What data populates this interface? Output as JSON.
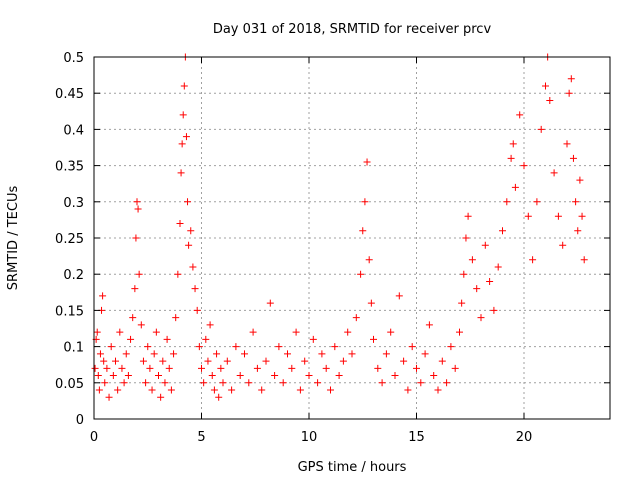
{
  "chart_data": {
    "type": "scatter",
    "title": "Day 031 of 2018, SRMTID for receiver prcv",
    "xlabel": "GPS time / hours",
    "ylabel": "SRMTID / TECUs",
    "xlim": [
      0,
      24
    ],
    "ylim": [
      0,
      0.5
    ],
    "x_ticks": [
      {
        "value": 0,
        "label": "0"
      },
      {
        "value": 5,
        "label": "5"
      },
      {
        "value": 10,
        "label": "10"
      },
      {
        "value": 15,
        "label": "15"
      },
      {
        "value": 20,
        "label": "20"
      }
    ],
    "y_ticks": [
      {
        "value": 0,
        "label": "0"
      },
      {
        "value": 0.05,
        "label": "0.05"
      },
      {
        "value": 0.1,
        "label": "0.1"
      },
      {
        "value": 0.15,
        "label": "0.15"
      },
      {
        "value": 0.2,
        "label": "0.2"
      },
      {
        "value": 0.25,
        "label": "0.25"
      },
      {
        "value": 0.3,
        "label": "0.3"
      },
      {
        "value": 0.35,
        "label": "0.35"
      },
      {
        "value": 0.4,
        "label": "0.4"
      },
      {
        "value": 0.45,
        "label": "0.45"
      },
      {
        "value": 0.5,
        "label": "0.5"
      }
    ],
    "grid": true,
    "marker": "+",
    "color": "#ff0000",
    "series": [
      {
        "name": "SRMTID",
        "points": [
          [
            0.05,
            0.07
          ],
          [
            0.1,
            0.11
          ],
          [
            0.15,
            0.12
          ],
          [
            0.2,
            0.06
          ],
          [
            0.25,
            0.04
          ],
          [
            0.3,
            0.09
          ],
          [
            0.35,
            0.15
          ],
          [
            0.4,
            0.17
          ],
          [
            0.45,
            0.08
          ],
          [
            0.5,
            0.05
          ],
          [
            0.6,
            0.07
          ],
          [
            0.7,
            0.03
          ],
          [
            0.8,
            0.1
          ],
          [
            0.9,
            0.06
          ],
          [
            1.0,
            0.08
          ],
          [
            1.1,
            0.04
          ],
          [
            1.2,
            0.12
          ],
          [
            1.3,
            0.07
          ],
          [
            1.4,
            0.05
          ],
          [
            1.5,
            0.09
          ],
          [
            1.6,
            0.06
          ],
          [
            1.7,
            0.11
          ],
          [
            1.8,
            0.14
          ],
          [
            1.9,
            0.18
          ],
          [
            1.95,
            0.25
          ],
          [
            2.0,
            0.3
          ],
          [
            2.05,
            0.29
          ],
          [
            2.1,
            0.2
          ],
          [
            2.2,
            0.13
          ],
          [
            2.3,
            0.08
          ],
          [
            2.4,
            0.05
          ],
          [
            2.5,
            0.1
          ],
          [
            2.6,
            0.07
          ],
          [
            2.7,
            0.04
          ],
          [
            2.8,
            0.09
          ],
          [
            2.9,
            0.12
          ],
          [
            3.0,
            0.06
          ],
          [
            3.1,
            0.03
          ],
          [
            3.2,
            0.08
          ],
          [
            3.3,
            0.05
          ],
          [
            3.4,
            0.11
          ],
          [
            3.5,
            0.07
          ],
          [
            3.6,
            0.04
          ],
          [
            3.7,
            0.09
          ],
          [
            3.8,
            0.14
          ],
          [
            3.9,
            0.2
          ],
          [
            4.0,
            0.27
          ],
          [
            4.05,
            0.34
          ],
          [
            4.1,
            0.38
          ],
          [
            4.15,
            0.42
          ],
          [
            4.2,
            0.46
          ],
          [
            4.25,
            0.5
          ],
          [
            4.3,
            0.39
          ],
          [
            4.35,
            0.3
          ],
          [
            4.4,
            0.24
          ],
          [
            4.5,
            0.26
          ],
          [
            4.6,
            0.21
          ],
          [
            4.7,
            0.18
          ],
          [
            4.8,
            0.15
          ],
          [
            4.9,
            0.1
          ],
          [
            5.0,
            0.07
          ],
          [
            5.1,
            0.05
          ],
          [
            5.2,
            0.11
          ],
          [
            5.3,
            0.08
          ],
          [
            5.4,
            0.13
          ],
          [
            5.5,
            0.06
          ],
          [
            5.6,
            0.04
          ],
          [
            5.7,
            0.09
          ],
          [
            5.8,
            0.03
          ],
          [
            5.9,
            0.07
          ],
          [
            6.0,
            0.05
          ],
          [
            6.2,
            0.08
          ],
          [
            6.4,
            0.04
          ],
          [
            6.6,
            0.1
          ],
          [
            6.8,
            0.06
          ],
          [
            7.0,
            0.09
          ],
          [
            7.2,
            0.05
          ],
          [
            7.4,
            0.12
          ],
          [
            7.6,
            0.07
          ],
          [
            7.8,
            0.04
          ],
          [
            8.0,
            0.08
          ],
          [
            8.2,
            0.16
          ],
          [
            8.4,
            0.06
          ],
          [
            8.6,
            0.1
          ],
          [
            8.8,
            0.05
          ],
          [
            9.0,
            0.09
          ],
          [
            9.2,
            0.07
          ],
          [
            9.4,
            0.12
          ],
          [
            9.6,
            0.04
          ],
          [
            9.8,
            0.08
          ],
          [
            10.0,
            0.06
          ],
          [
            10.2,
            0.11
          ],
          [
            10.4,
            0.05
          ],
          [
            10.6,
            0.09
          ],
          [
            10.8,
            0.07
          ],
          [
            11.0,
            0.04
          ],
          [
            11.2,
            0.1
          ],
          [
            11.4,
            0.06
          ],
          [
            11.6,
            0.08
          ],
          [
            11.8,
            0.12
          ],
          [
            12.0,
            0.09
          ],
          [
            12.2,
            0.14
          ],
          [
            12.4,
            0.2
          ],
          [
            12.5,
            0.26
          ],
          [
            12.6,
            0.3
          ],
          [
            12.7,
            0.355
          ],
          [
            12.8,
            0.22
          ],
          [
            12.9,
            0.16
          ],
          [
            13.0,
            0.11
          ],
          [
            13.2,
            0.07
          ],
          [
            13.4,
            0.05
          ],
          [
            13.6,
            0.09
          ],
          [
            13.8,
            0.12
          ],
          [
            14.0,
            0.06
          ],
          [
            14.2,
            0.17
          ],
          [
            14.4,
            0.08
          ],
          [
            14.6,
            0.04
          ],
          [
            14.8,
            0.1
          ],
          [
            15.0,
            0.07
          ],
          [
            15.2,
            0.05
          ],
          [
            15.4,
            0.09
          ],
          [
            15.6,
            0.13
          ],
          [
            15.8,
            0.06
          ],
          [
            16.0,
            0.04
          ],
          [
            16.2,
            0.08
          ],
          [
            16.4,
            0.05
          ],
          [
            16.6,
            0.1
          ],
          [
            16.8,
            0.07
          ],
          [
            17.0,
            0.12
          ],
          [
            17.1,
            0.16
          ],
          [
            17.2,
            0.2
          ],
          [
            17.3,
            0.25
          ],
          [
            17.4,
            0.28
          ],
          [
            17.6,
            0.22
          ],
          [
            17.8,
            0.18
          ],
          [
            18.0,
            0.14
          ],
          [
            18.2,
            0.24
          ],
          [
            18.4,
            0.19
          ],
          [
            18.6,
            0.15
          ],
          [
            18.8,
            0.21
          ],
          [
            19.0,
            0.26
          ],
          [
            19.2,
            0.3
          ],
          [
            19.4,
            0.36
          ],
          [
            19.5,
            0.38
          ],
          [
            19.6,
            0.32
          ],
          [
            19.8,
            0.42
          ],
          [
            20.0,
            0.35
          ],
          [
            20.2,
            0.28
          ],
          [
            20.4,
            0.22
          ],
          [
            20.6,
            0.3
          ],
          [
            20.8,
            0.4
          ],
          [
            21.0,
            0.46
          ],
          [
            21.1,
            0.5
          ],
          [
            21.2,
            0.44
          ],
          [
            21.4,
            0.34
          ],
          [
            21.6,
            0.28
          ],
          [
            21.8,
            0.24
          ],
          [
            22.0,
            0.38
          ],
          [
            22.1,
            0.45
          ],
          [
            22.2,
            0.47
          ],
          [
            22.3,
            0.36
          ],
          [
            22.4,
            0.3
          ],
          [
            22.5,
            0.26
          ],
          [
            22.6,
            0.33
          ],
          [
            22.7,
            0.28
          ],
          [
            22.8,
            0.22
          ]
        ]
      }
    ]
  }
}
